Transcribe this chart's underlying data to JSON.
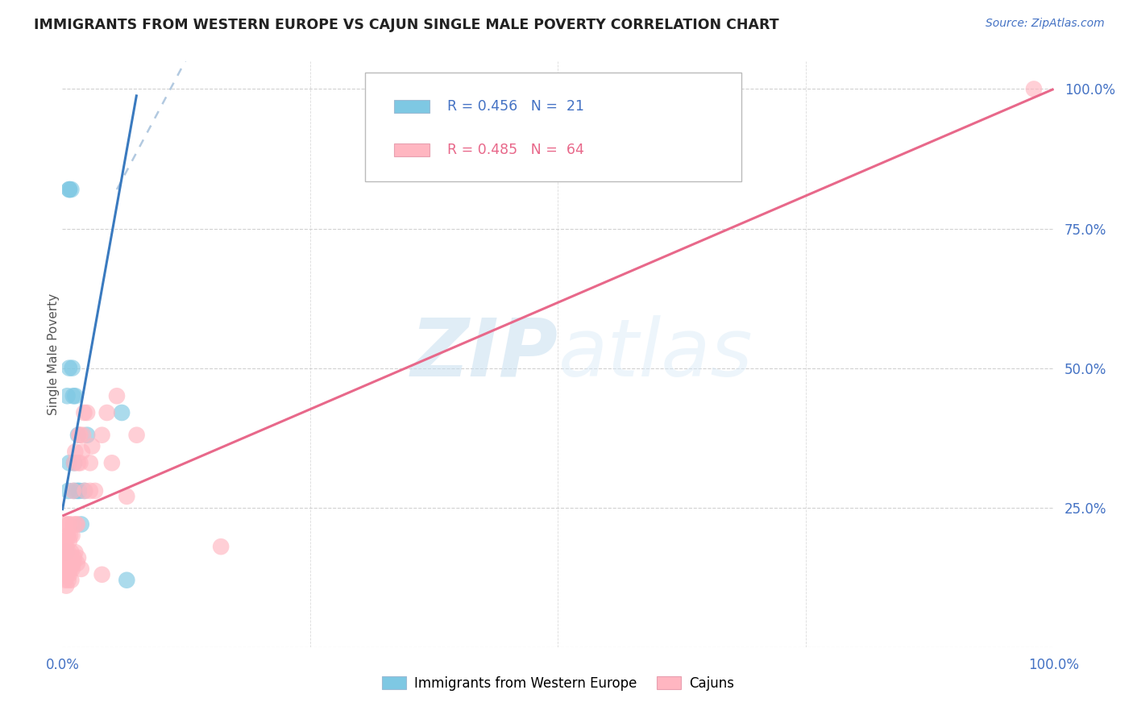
{
  "title": "IMMIGRANTS FROM WESTERN EUROPE VS CAJUN SINGLE MALE POVERTY CORRELATION CHART",
  "source": "Source: ZipAtlas.com",
  "ylabel": "Single Male Poverty",
  "legend_blue_r": "R = 0.456",
  "legend_blue_n": "N =  21",
  "legend_pink_r": "R = 0.485",
  "legend_pink_n": "N =  64",
  "legend_label_blue": "Immigrants from Western Europe",
  "legend_label_pink": "Cajuns",
  "blue_color": "#7ec8e3",
  "pink_color": "#ffb6c1",
  "blue_line_color": "#3a7abf",
  "pink_line_color": "#e8688a",
  "watermark_zip": "ZIP",
  "watermark_atlas": "atlas",
  "background_color": "#ffffff",
  "grid_color": "#cccccc",
  "blue_points_x": [
    0.004,
    0.005,
    0.006,
    0.007,
    0.007,
    0.007,
    0.007,
    0.009,
    0.01,
    0.011,
    0.012,
    0.012,
    0.013,
    0.015,
    0.016,
    0.017,
    0.019,
    0.022,
    0.025,
    0.06,
    0.065
  ],
  "blue_points_y": [
    0.17,
    0.45,
    0.28,
    0.33,
    0.5,
    0.82,
    0.82,
    0.82,
    0.5,
    0.45,
    0.28,
    0.33,
    0.45,
    0.28,
    0.38,
    0.28,
    0.22,
    0.28,
    0.38,
    0.42,
    0.12
  ],
  "pink_points_x": [
    0.001,
    0.001,
    0.001,
    0.002,
    0.002,
    0.003,
    0.003,
    0.003,
    0.003,
    0.004,
    0.004,
    0.004,
    0.005,
    0.005,
    0.005,
    0.006,
    0.006,
    0.006,
    0.006,
    0.006,
    0.007,
    0.007,
    0.007,
    0.007,
    0.008,
    0.008,
    0.009,
    0.009,
    0.01,
    0.01,
    0.011,
    0.011,
    0.011,
    0.012,
    0.012,
    0.013,
    0.013,
    0.014,
    0.015,
    0.015,
    0.016,
    0.016,
    0.017,
    0.018,
    0.018,
    0.019,
    0.02,
    0.021,
    0.022,
    0.023,
    0.025,
    0.028,
    0.028,
    0.03,
    0.033,
    0.04,
    0.04,
    0.045,
    0.05,
    0.055,
    0.065,
    0.075,
    0.16,
    0.98
  ],
  "pink_points_y": [
    0.14,
    0.17,
    0.19,
    0.13,
    0.16,
    0.12,
    0.15,
    0.18,
    0.22,
    0.11,
    0.14,
    0.18,
    0.13,
    0.16,
    0.2,
    0.12,
    0.15,
    0.17,
    0.2,
    0.22,
    0.13,
    0.16,
    0.19,
    0.22,
    0.14,
    0.2,
    0.12,
    0.17,
    0.14,
    0.2,
    0.15,
    0.22,
    0.28,
    0.16,
    0.33,
    0.17,
    0.35,
    0.22,
    0.15,
    0.22,
    0.16,
    0.33,
    0.38,
    0.33,
    0.38,
    0.14,
    0.35,
    0.38,
    0.42,
    0.28,
    0.42,
    0.28,
    0.33,
    0.36,
    0.28,
    0.38,
    0.13,
    0.42,
    0.33,
    0.45,
    0.27,
    0.38,
    0.18,
    1.0
  ],
  "xlim": [
    0.0,
    1.0
  ],
  "ylim": [
    0.0,
    1.05
  ],
  "y_ticks": [
    0.0,
    0.25,
    0.5,
    0.75,
    1.0
  ],
  "y_tick_labels": [
    "",
    "25.0%",
    "50.0%",
    "75.0%",
    "100.0%"
  ],
  "x_tick_labels": [
    "0.0%",
    "",
    "",
    "",
    "100.0%"
  ]
}
